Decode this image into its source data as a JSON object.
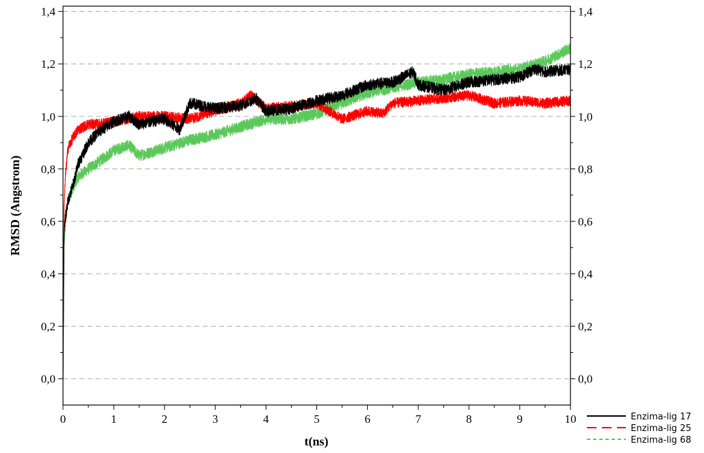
{
  "chart_data": {
    "type": "line",
    "title": "",
    "xlabel": "t(ns)",
    "ylabel": "RMSD (Angstrom)",
    "xlim": [
      0,
      10
    ],
    "ylim": [
      -0.1,
      1.42
    ],
    "x_ticks": [
      0,
      1,
      2,
      3,
      4,
      5,
      6,
      7,
      8,
      9,
      10
    ],
    "x_tick_labels": [
      "0",
      "1",
      "2",
      "3",
      "4",
      "5",
      "6",
      "7",
      "8",
      "9",
      "10"
    ],
    "y_ticks": [
      0.0,
      0.2,
      0.4,
      0.6,
      0.8,
      1.0,
      1.2,
      1.4
    ],
    "y_tick_labels": [
      "0,0",
      "0,2",
      "0,4",
      "0,6",
      "0,8",
      "1,0",
      "1,2",
      "1,4"
    ],
    "right_axis_tick_labels": [
      "0,0",
      "0,2",
      "0,4",
      "0,6",
      "0,8",
      "1,0",
      "1,2",
      "1,4"
    ],
    "grid": "horizontal dashed",
    "legend_position": "bottom-right, outside plot",
    "series": [
      {
        "name": "Enzima-lig 17",
        "color": "#000000",
        "line_style": "solid",
        "x": [
          0,
          0.02,
          0.05,
          0.1,
          0.2,
          0.3,
          0.5,
          0.7,
          1.0,
          1.3,
          1.5,
          2.0,
          2.3,
          2.5,
          3.0,
          3.5,
          3.8,
          4.0,
          4.5,
          5.0,
          5.5,
          6.0,
          6.5,
          6.9,
          7.0,
          7.5,
          8.0,
          8.5,
          9.0,
          9.3,
          9.5,
          10.0
        ],
        "y": [
          0.0,
          0.55,
          0.62,
          0.68,
          0.74,
          0.82,
          0.9,
          0.94,
          0.98,
          1.0,
          0.97,
          0.99,
          0.95,
          1.05,
          1.03,
          1.04,
          1.07,
          1.02,
          1.03,
          1.06,
          1.08,
          1.12,
          1.13,
          1.17,
          1.12,
          1.1,
          1.13,
          1.14,
          1.15,
          1.18,
          1.17,
          1.18
        ]
      },
      {
        "name": "Enzima-lig 25",
        "color": "#ff0000",
        "line_style": "dashed",
        "x": [
          0,
          0.02,
          0.05,
          0.1,
          0.2,
          0.3,
          0.5,
          0.7,
          1.0,
          1.5,
          2.0,
          2.5,
          3.0,
          3.5,
          3.7,
          4.0,
          4.5,
          5.0,
          5.5,
          6.0,
          6.3,
          6.5,
          7.0,
          7.5,
          8.0,
          8.5,
          9.0,
          9.5,
          10.0
        ],
        "y": [
          0.0,
          0.65,
          0.78,
          0.88,
          0.92,
          0.95,
          0.97,
          0.97,
          0.98,
          1.0,
          1.0,
          0.99,
          1.02,
          1.05,
          1.08,
          1.03,
          1.04,
          1.05,
          0.99,
          1.02,
          1.01,
          1.05,
          1.06,
          1.07,
          1.08,
          1.05,
          1.06,
          1.05,
          1.06
        ]
      },
      {
        "name": "Enzima-lig 68",
        "color": "#5cc85c",
        "line_style": "dotted-dashed",
        "x": [
          0,
          0.02,
          0.05,
          0.1,
          0.2,
          0.3,
          0.5,
          0.8,
          1.0,
          1.3,
          1.5,
          2.0,
          2.5,
          3.0,
          3.5,
          4.0,
          4.5,
          5.0,
          5.5,
          6.0,
          6.5,
          7.0,
          7.5,
          8.0,
          8.5,
          9.0,
          9.5,
          10.0
        ],
        "y": [
          0.0,
          0.5,
          0.6,
          0.68,
          0.73,
          0.77,
          0.8,
          0.84,
          0.87,
          0.89,
          0.85,
          0.88,
          0.91,
          0.93,
          0.96,
          0.99,
          0.99,
          1.01,
          1.05,
          1.09,
          1.11,
          1.13,
          1.14,
          1.16,
          1.17,
          1.18,
          1.21,
          1.26
        ]
      }
    ]
  }
}
